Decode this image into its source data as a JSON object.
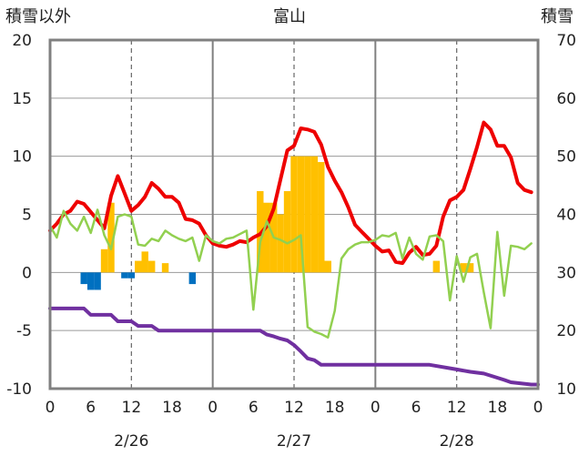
{
  "chart_data": {
    "type": "line",
    "title": "富山",
    "left_axis": {
      "label": "積雪以外",
      "ylim": [
        -10,
        20
      ],
      "ticks": [
        "20",
        "15",
        "10",
        "5",
        "0",
        "-5",
        "-10"
      ]
    },
    "right_axis": {
      "label": "積雪",
      "ylim": [
        10,
        70
      ],
      "ticks": [
        "70",
        "60",
        "50",
        "40",
        "30",
        "20",
        "10"
      ]
    },
    "x_axis": {
      "range": [
        0,
        72
      ],
      "tick_hours": [
        0,
        6,
        12,
        18,
        24,
        30,
        36,
        42,
        48,
        54,
        60,
        66,
        72
      ],
      "tick_labels": [
        "0",
        "6",
        "12",
        "18",
        "0",
        "6",
        "12",
        "18",
        "0",
        "6",
        "12",
        "18",
        "0"
      ],
      "date_labels": [
        {
          "label": "2/26",
          "hour": 12
        },
        {
          "label": "2/27",
          "hour": 36
        },
        {
          "label": "2/28",
          "hour": 60
        }
      ],
      "day_boundaries": [
        24,
        48
      ],
      "noon_lines": [
        12,
        36,
        60
      ]
    },
    "colors": {
      "temperature": "#ee0000",
      "green_series": "#92d050",
      "snow_depth": "#7030a0",
      "precip": "#ffc000",
      "negative_bar": "#0070c0"
    },
    "series": [
      {
        "key": "temperature",
        "axis": "left",
        "x": [
          0,
          1,
          2,
          3,
          4,
          5,
          6,
          7,
          8,
          9,
          10,
          11,
          12,
          13,
          14,
          15,
          16,
          17,
          18,
          19,
          20,
          21,
          22,
          23,
          24,
          25,
          26,
          27,
          28,
          29,
          30,
          31,
          32,
          33,
          34,
          35,
          36,
          37,
          38,
          39,
          40,
          41,
          42,
          43,
          44,
          45,
          46,
          47,
          48,
          49,
          50,
          51,
          52,
          53,
          54,
          55,
          56,
          57,
          58,
          59,
          60,
          61,
          62,
          63,
          64,
          65,
          66,
          67,
          68,
          69,
          70,
          71
        ],
        "values": [
          3.6,
          4.2,
          5.0,
          5.3,
          6.1,
          5.9,
          5.2,
          4.5,
          3.8,
          6.6,
          8.3,
          6.8,
          5.3,
          5.8,
          6.5,
          7.7,
          7.2,
          6.5,
          6.5,
          6.0,
          4.6,
          4.5,
          4.2,
          3.2,
          2.5,
          2.3,
          2.2,
          2.4,
          2.7,
          2.6,
          3.0,
          3.3,
          4.0,
          5.5,
          8.0,
          10.5,
          10.9,
          12.4,
          12.3,
          12.1,
          11.0,
          9.1,
          7.9,
          6.9,
          5.6,
          4.1,
          3.5,
          2.9,
          2.3,
          1.8,
          1.9,
          0.9,
          0.8,
          1.7,
          2.2,
          1.5,
          1.6,
          2.3,
          4.8,
          6.2,
          6.5,
          7.1,
          8.9,
          10.8,
          12.9,
          12.3,
          10.9,
          10.9,
          9.9,
          7.7,
          7.1,
          6.9
        ]
      },
      {
        "key": "green_series",
        "axis": "left",
        "x": [
          0,
          1,
          2,
          3,
          4,
          5,
          6,
          7,
          8,
          9,
          10,
          11,
          12,
          13,
          14,
          15,
          16,
          17,
          18,
          19,
          20,
          21,
          22,
          23,
          24,
          25,
          26,
          27,
          28,
          29,
          30,
          31,
          32,
          33,
          34,
          35,
          36,
          37,
          38,
          39,
          40,
          41,
          42,
          43,
          44,
          45,
          46,
          47,
          48,
          49,
          50,
          51,
          52,
          53,
          54,
          55,
          56,
          57,
          58,
          59,
          60,
          61,
          62,
          63,
          64,
          65,
          66,
          67,
          68,
          69,
          70,
          71
        ],
        "values": [
          4.0,
          3.0,
          5.3,
          4.2,
          3.6,
          4.8,
          3.4,
          5.4,
          3.2,
          2.0,
          4.8,
          5.0,
          4.8,
          2.4,
          2.3,
          2.9,
          2.7,
          3.6,
          3.2,
          2.9,
          2.7,
          3.0,
          1.0,
          3.2,
          2.7,
          2.5,
          2.9,
          3.0,
          3.3,
          3.6,
          -3.2,
          2.6,
          4.4,
          3.0,
          2.8,
          2.5,
          2.8,
          3.2,
          -4.7,
          -5.1,
          -5.3,
          -5.6,
          -3.3,
          1.2,
          2.0,
          2.4,
          2.6,
          2.6,
          2.8,
          3.2,
          3.1,
          3.4,
          1.2,
          3.0,
          1.6,
          1.1,
          3.1,
          3.2,
          2.7,
          -2.4,
          1.4,
          -0.8,
          1.3,
          1.6,
          -1.7,
          -4.8,
          3.5,
          -2.0,
          2.3,
          2.2,
          2.0,
          2.5
        ]
      },
      {
        "key": "snow_depth",
        "axis": "right",
        "x": [
          0,
          5,
          6,
          9,
          10,
          12,
          13,
          15,
          16,
          31,
          32,
          33,
          34,
          35,
          36,
          37,
          38,
          39,
          40,
          48,
          56,
          60,
          62,
          64,
          67,
          68,
          71,
          72
        ],
        "values": [
          23.8,
          23.8,
          22.7,
          22.7,
          21.6,
          21.6,
          20.8,
          20.8,
          20.0,
          20.0,
          19.3,
          19.0,
          18.6,
          18.3,
          17.5,
          16.4,
          15.2,
          14.9,
          14.1,
          14.1,
          14.1,
          13.3,
          12.9,
          12.6,
          11.5,
          11.1,
          10.7,
          10.7
        ]
      }
    ],
    "bars": [
      {
        "key": "precip",
        "axis": "left",
        "x": [
          8,
          9,
          13,
          14,
          15,
          17,
          31,
          32,
          33,
          34,
          35,
          36,
          37,
          38,
          39,
          40,
          41,
          57,
          61,
          62
        ],
        "values": [
          2.0,
          6.0,
          1.0,
          1.8,
          1.0,
          0.8,
          7.0,
          6.0,
          6.0,
          5.0,
          7.0,
          10.0,
          10.0,
          10.0,
          10.0,
          9.5,
          1.0,
          1.0,
          0.8,
          0.8
        ]
      },
      {
        "key": "negative_bar",
        "axis": "left",
        "x": [
          5,
          6,
          7,
          11,
          12,
          21
        ],
        "values": [
          -1.0,
          -1.5,
          -1.5,
          -0.5,
          -0.5,
          -1.0
        ]
      }
    ]
  }
}
